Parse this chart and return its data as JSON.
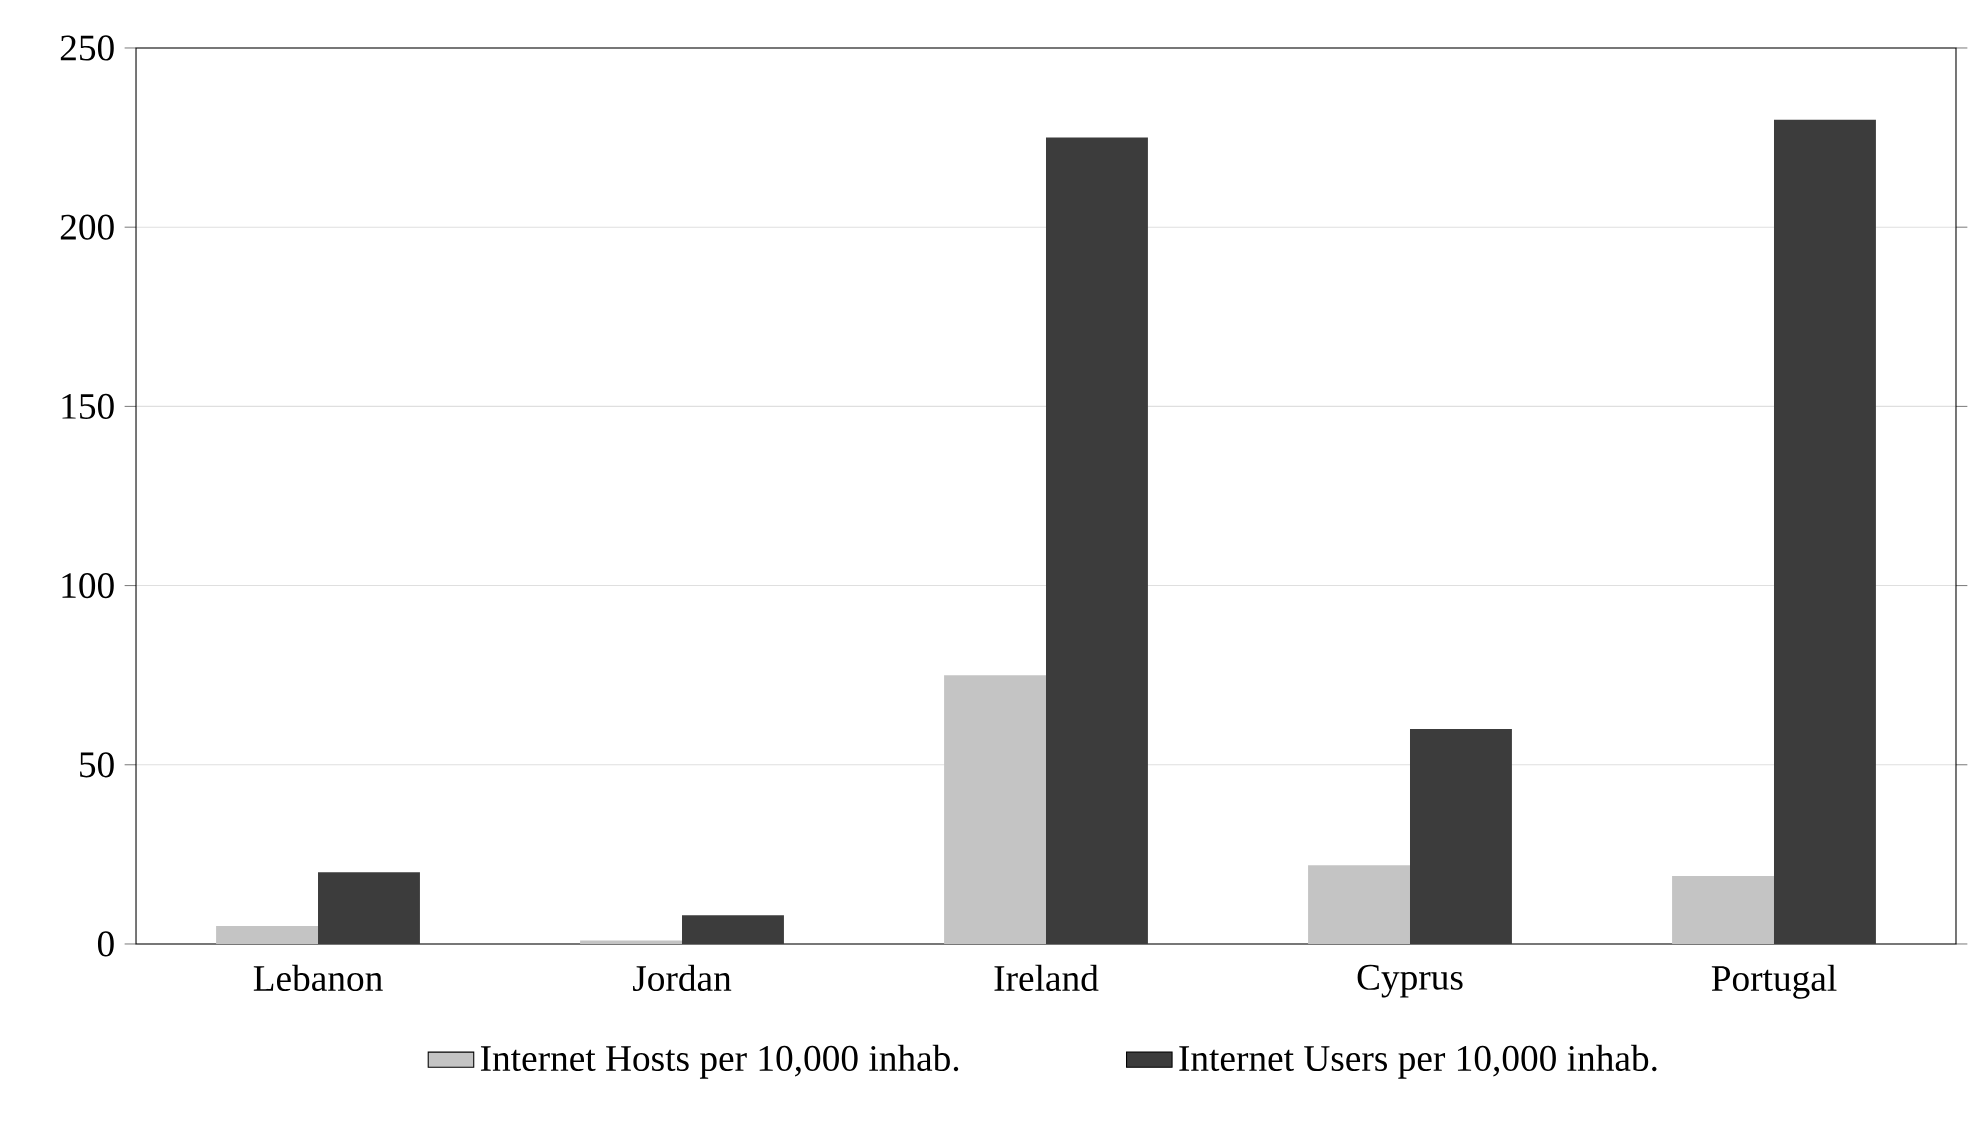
{
  "chart_data": {
    "type": "bar",
    "categories": [
      "Lebanon",
      "Jordan",
      "Ireland",
      "Cyprus",
      "Portugal"
    ],
    "series": [
      {
        "name": "Internet Hosts per 10,000 inhab.",
        "color": "#c4c4c4",
        "values": [
          5,
          1,
          75,
          22,
          19
        ]
      },
      {
        "name": "Internet Users per 10,000 inhab.",
        "color": "#3c3c3c",
        "values": [
          20,
          8,
          225,
          60,
          230
        ]
      }
    ],
    "ylim": [
      0,
      250
    ],
    "yticks": [
      0,
      50,
      100,
      150,
      200,
      250
    ],
    "grid": "y",
    "legend": "bottom"
  }
}
